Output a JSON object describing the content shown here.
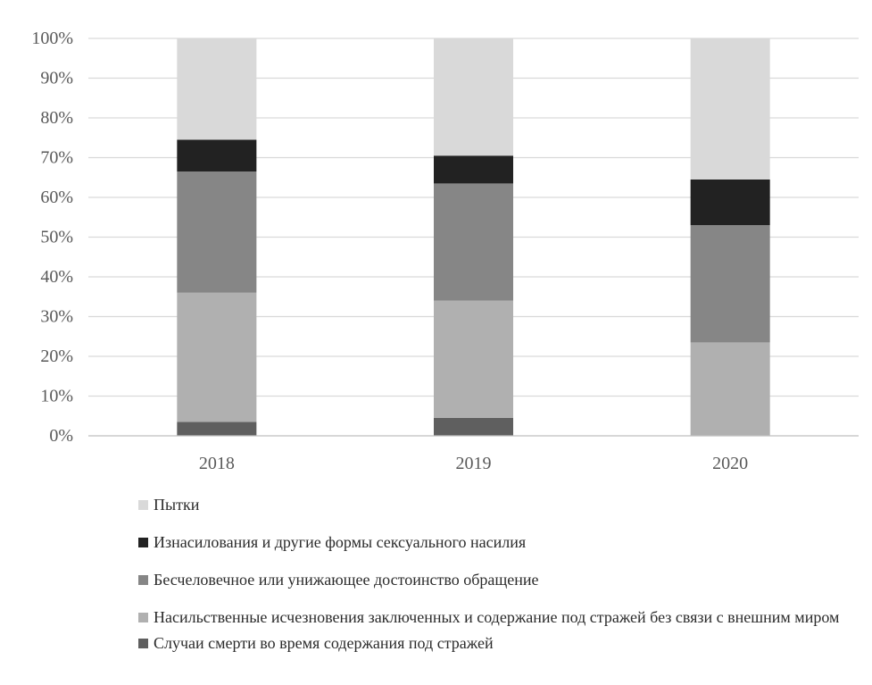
{
  "chart_data": {
    "type": "bar",
    "stacked": true,
    "percent_stacked": true,
    "categories": [
      "2018",
      "2019",
      "2020"
    ],
    "ylim": [
      0,
      100
    ],
    "y_ticks": [
      "0%",
      "10%",
      "20%",
      "30%",
      "40%",
      "50%",
      "60%",
      "70%",
      "80%",
      "90%",
      "100%"
    ],
    "grid": true,
    "legend_position": "bottom",
    "series": [
      {
        "name": "Случаи смерти во время содержания под стражей",
        "color": "#5f5f5f",
        "values": [
          3.5,
          4.5,
          0
        ]
      },
      {
        "name": "Насильственные исчезновения заключенных и содержание под стражей без связи с внешним миром",
        "color": "#b0b0b0",
        "values": [
          32.5,
          29.5,
          23.5
        ]
      },
      {
        "name": "Бесчеловечное или унижающее достоинство обращение",
        "color": "#868686",
        "values": [
          30.5,
          29.5,
          29.5
        ]
      },
      {
        "name": "Изнасилования и другие формы сексуального насилия",
        "color": "#222222",
        "values": [
          8,
          7,
          11.5
        ]
      },
      {
        "name": "Пытки",
        "color": "#d9d9d9",
        "values": [
          25.5,
          29.5,
          35.5
        ]
      }
    ]
  },
  "legend_items": [
    {
      "label": "Пытки",
      "color": "#d9d9d9"
    },
    {
      "label": "Изнасилования и другие формы сексуального насилия",
      "color": "#222222"
    },
    {
      "label": "Бесчеловечное или унижающее достоинство обращение",
      "color": "#868686"
    },
    {
      "label": "Насильственные исчезновения заключенных и содержание под стражей без связи с внешним миром",
      "color": "#b0b0b0"
    },
    {
      "label": "Случаи смерти во время содержания под стражей",
      "color": "#5f5f5f"
    }
  ]
}
